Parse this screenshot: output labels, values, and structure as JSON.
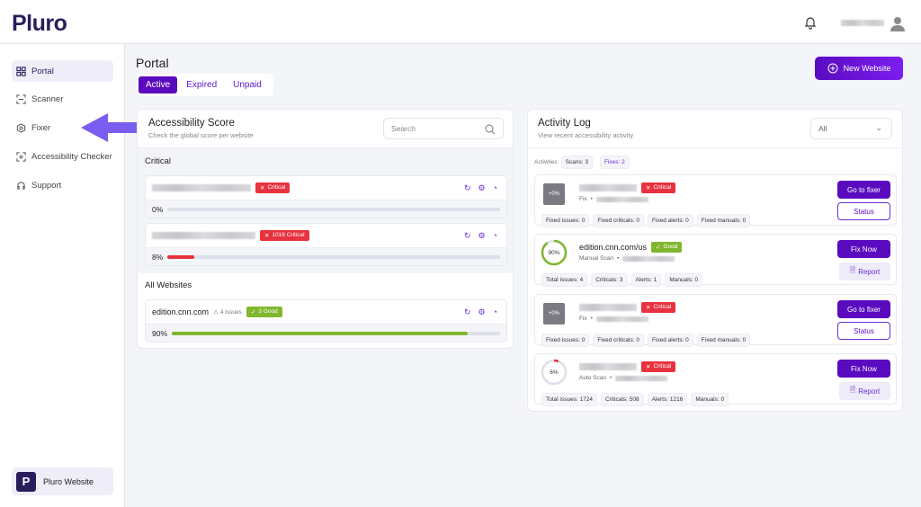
{
  "header": {
    "logo": "Pluro",
    "bell_icon": "bell-icon",
    "avatar_icon": "user-icon"
  },
  "sidebar": {
    "items": [
      {
        "label": "Portal",
        "icon": "grid-icon",
        "active": true
      },
      {
        "label": "Scanner",
        "icon": "scan-icon"
      },
      {
        "label": "Fixer",
        "icon": "hexagon-gear-icon"
      },
      {
        "label": "Accessibility Checker",
        "icon": "scan-search-icon"
      },
      {
        "label": "Support",
        "icon": "headset-icon"
      }
    ],
    "footer": {
      "label": "Pluro Website",
      "logo_letter": "P"
    }
  },
  "page": {
    "title": "Portal",
    "tabs": [
      {
        "label": "Active",
        "active": true
      },
      {
        "label": "Expired"
      },
      {
        "label": "Unpaid"
      }
    ],
    "new_website": "New Website"
  },
  "score": {
    "title": "Accessibility Score",
    "subtitle": "Check the global score per website",
    "search_placeholder": "Search",
    "critical_label": "Critical",
    "all_label": "All Websites",
    "critical": [
      {
        "badge": "Critical",
        "percent": "0%",
        "value": 0
      },
      {
        "badge": "1016 Critical",
        "percent": "8%",
        "value": 8
      }
    ],
    "all": [
      {
        "name": "edition.cnn.com",
        "issues": "4 Issues",
        "badge": "3 Good",
        "percent": "90%",
        "value": 90
      }
    ]
  },
  "activity": {
    "title": "Activity Log",
    "subtitle": "View recent accessibility activity",
    "filter": "All",
    "activities_label": "Activities",
    "scans": "Scans: 3",
    "fixes": "Fixes: 2",
    "items": [
      {
        "type": "fix",
        "thumb": "+0%",
        "badge": "Critical",
        "meta": "Fix",
        "chips": [
          "Fixed issues: 0",
          "Fixed criticals: 0",
          "Fixed alerts: 0",
          "Fixed manuals: 0"
        ],
        "primary": "Go to fixer",
        "secondary": "Status"
      },
      {
        "type": "scan",
        "score": "90%",
        "value": 90,
        "color": "#80b72f",
        "name": "edition.cnn.com/us",
        "badge": "Good",
        "meta": "Manual Scan",
        "chips": [
          "Total issues: 4",
          "Criticals: 3",
          "Alerts: 1",
          "Manuals: 0"
        ],
        "primary": "Fix Now",
        "secondary": "Report"
      },
      {
        "type": "fix",
        "thumb": "+0%",
        "badge": "Critical",
        "meta": "Fix",
        "chips": [
          "Fixed issues: 0",
          "Fixed criticals: 0",
          "Fixed alerts: 0",
          "Fixed manuals: 0"
        ],
        "primary": "Go to fixer",
        "secondary": "Status"
      },
      {
        "type": "scan",
        "score": "6%",
        "value": 6,
        "color": "#e8323f",
        "badge": "Critical",
        "meta": "Auto Scan",
        "chips": [
          "Total issues: 1724",
          "Criticals: 508",
          "Alerts: 1216",
          "Manuals: 0"
        ],
        "primary": "Fix Now",
        "secondary": "Report"
      }
    ]
  },
  "colors": {
    "brand": "#5a0bc0",
    "critical": "#e8323f",
    "good": "#80b72f",
    "arrow": "#7b5cf0"
  }
}
